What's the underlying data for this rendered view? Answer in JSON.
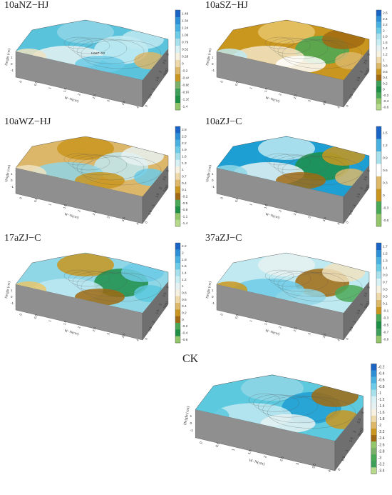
{
  "colormap": [
    "#93c66a",
    "#49a957",
    "#1f8f47",
    "#e6c66b",
    "#c9961f",
    "#a06a12",
    "#ffffff",
    "#bfe9f1",
    "#5cc9de",
    "#1e9fd4",
    "#1a64c6"
  ],
  "panels": [
    {
      "id": "p1",
      "title": "10aNZ−HJ",
      "ticks": [
        "1.48",
        "1.34",
        "1.24",
        "1.06",
        "0.79",
        "0.52",
        "0.28",
        "0",
        "-0.2",
        "-0.44",
        "-0.68",
        "-0.97",
        "-1.16",
        "-1.4"
      ],
      "palette": [
        "#1a64c6",
        "#2d8fd6",
        "#49b1e2",
        "#6ccbe6",
        "#a8e0ec",
        "#d8f1f4",
        "#f6f1e1",
        "#edd9a9",
        "#ddb868",
        "#c9961f",
        "#7bb06a",
        "#3e9f5a",
        "#1f8f47",
        "#93c66a"
      ],
      "surface": [
        "#5bc3dc",
        "#8fd6e6",
        "#c8edf3",
        "#e6f2f2",
        "#bfe9f1",
        "#6ccbe6",
        "#f0e2c0",
        "#dcb76a"
      ],
      "contour": "Ha6Z~X0"
    },
    {
      "id": "p2",
      "title": "10aSZ−HJ",
      "ticks": [
        "2.6",
        "2.4",
        "2.2",
        "2",
        "1.8",
        "1.6",
        "1.4",
        "1.2",
        "1",
        "0.8",
        "0.6",
        "0.4",
        "0.2",
        "0",
        "-0.2",
        "-0.4",
        "-0.6"
      ],
      "palette": [
        "#1a64c6",
        "#2d8fd6",
        "#49b1e2",
        "#6ccbe6",
        "#a8e0ec",
        "#c8edf3",
        "#e6f2f2",
        "#f6f1e1",
        "#edd9a9",
        "#ddb868",
        "#c9961f",
        "#a06a12",
        "#3e9f5a",
        "#1f8f47",
        "#49a957",
        "#93c66a",
        "#b7d98c"
      ],
      "surface": [
        "#c9961f",
        "#e6c66b",
        "#49a957",
        "#f2e6c8",
        "#a06a12",
        "#ffffff",
        "#bfe9f1",
        "#dcb76a"
      ],
      "contour": ""
    },
    {
      "id": "p3",
      "title": "10aWZ−HJ",
      "ticks": [
        "2.8",
        "2.5",
        "2.2",
        "1.9",
        "1.6",
        "1.3",
        "1",
        "0.7",
        "0.4",
        "0.1",
        "-0.2",
        "-0.5",
        "-0.8",
        "-1.1",
        "-1.4"
      ],
      "palette": [
        "#1a64c6",
        "#2d8fd6",
        "#49b1e2",
        "#6ccbe6",
        "#a8e0ec",
        "#d8f1f4",
        "#f6f1e1",
        "#edd9a9",
        "#ddb868",
        "#c9961f",
        "#a06a12",
        "#49a957",
        "#1f8f47",
        "#93c66a",
        "#b7d98c"
      ],
      "surface": [
        "#dcb76a",
        "#c9961f",
        "#bfe9f1",
        "#8fd6e6",
        "#e6f2f2",
        "#c9961f",
        "#f0e2c0",
        "#6ccbe6"
      ],
      "contour": ""
    },
    {
      "id": "p4",
      "title": "10aZJ−C",
      "ticks": [
        "1.5",
        "1.2",
        "0.9",
        "0.6",
        "0.3",
        "0",
        "-0.3",
        "-0.6"
      ],
      "palette": [
        "#1a64c6",
        "#49b1e2",
        "#a8e0ec",
        "#ffffff",
        "#ddb868",
        "#c9961f",
        "#49a957",
        "#93c66a"
      ],
      "surface": [
        "#1e9fd4",
        "#bfe9f1",
        "#1f8f47",
        "#e6f2f2",
        "#c9961f",
        "#a06a12",
        "#8fd6e6",
        "#dcb76a"
      ],
      "contour": ""
    },
    {
      "id": "p5",
      "title": "17aZJ−C",
      "ticks": [
        "2.2",
        "2",
        "1.8",
        "1.6",
        "1.4",
        "1.2",
        "1",
        "0.8",
        "0.6",
        "0.4",
        "0.2",
        "0",
        "-0.2",
        "-0.4",
        "-0.6"
      ],
      "palette": [
        "#1a64c6",
        "#2d8fd6",
        "#49b1e2",
        "#6ccbe6",
        "#a8e0ec",
        "#c8edf3",
        "#e6f2f2",
        "#f6f1e1",
        "#edd9a9",
        "#ddb868",
        "#c9961f",
        "#a06a12",
        "#49a957",
        "#1f8f47",
        "#93c66a"
      ],
      "surface": [
        "#8fd6e6",
        "#c9961f",
        "#1f8f47",
        "#bfe9f1",
        "#6ccbe6",
        "#a06a12",
        "#e6c66b",
        "#5cc9de"
      ],
      "contour": ""
    },
    {
      "id": "p6",
      "title": "37aZJ−C",
      "ticks": [
        "1.7",
        "1.5",
        "1.3",
        "1.1",
        "0.9",
        "0.7",
        "0.5",
        "0.3",
        "0.1",
        "-0.1",
        "-0.3",
        "-0.5",
        "-0.7",
        "-0.9"
      ],
      "palette": [
        "#1a64c6",
        "#2d8fd6",
        "#49b1e2",
        "#6ccbe6",
        "#a8e0ec",
        "#d8f1f4",
        "#f6f1e1",
        "#edd9a9",
        "#ddb868",
        "#c9961f",
        "#49a957",
        "#1f8f47",
        "#3e9f5a",
        "#93c66a"
      ],
      "surface": [
        "#bfe9f1",
        "#e6f2f2",
        "#a06a12",
        "#6ccbe6",
        "#f0e2c0",
        "#8fd6e6",
        "#c9961f",
        "#49a957"
      ],
      "contour": ""
    },
    {
      "id": "p7",
      "title": "CK",
      "ticks": [
        "-0.2",
        "-0.4",
        "-0.6",
        "-0.8",
        "-1",
        "-1.2",
        "-1.4",
        "-1.6",
        "-1.8",
        "-2",
        "-2.2",
        "-2.4",
        "-2.6",
        "-2.8",
        "-3",
        "-3.2",
        "-3.4"
      ],
      "palette": [
        "#1a64c6",
        "#2d8fd6",
        "#49b1e2",
        "#6ccbe6",
        "#a8e0ec",
        "#d8f1f4",
        "#e6f2f2",
        "#f6f1e1",
        "#edd9a9",
        "#ddb868",
        "#c9961f",
        "#a06a12",
        "#93c66a",
        "#7bb06a",
        "#49a957",
        "#3e9f5a",
        "#b7d98c"
      ],
      "surface": [
        "#5cc9de",
        "#8fd6e6",
        "#1e9fd4",
        "#bfe9f1",
        "#a06a12",
        "#e6f2f2",
        "#5cc9de",
        "#c9961f"
      ],
      "contour": ""
    }
  ],
  "axes": {
    "height_label": "Height (cm)",
    "we_label": "W−N(cm)",
    "sn_label": "S(m)",
    "we_ticks": [
      "0",
      "0.5",
      "1",
      "1.5",
      "2",
      "2.5",
      "3",
      "3.5",
      "4"
    ],
    "sn_ticks": [
      "0",
      "0.5",
      "1",
      "1.5",
      "2",
      "2.5",
      "3"
    ],
    "h_ticks": [
      "-1",
      "0",
      "1"
    ]
  }
}
